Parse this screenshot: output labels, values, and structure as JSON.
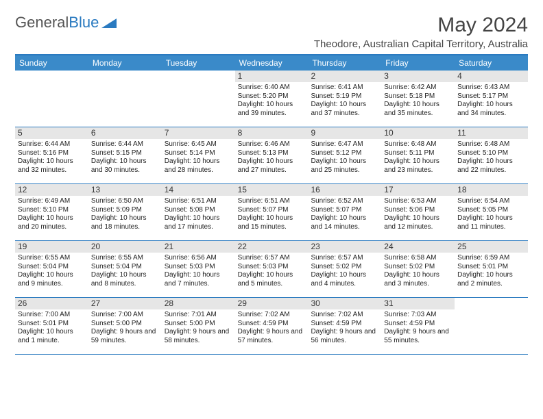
{
  "logo": {
    "text1": "General",
    "text2": "Blue"
  },
  "title": "May 2024",
  "subtitle": "Theodore, Australian Capital Territory, Australia",
  "colors": {
    "header_bg": "#3a8ac9",
    "border": "#2a7ac0",
    "daynum_bg": "#e6e6e6"
  },
  "day_names": [
    "Sunday",
    "Monday",
    "Tuesday",
    "Wednesday",
    "Thursday",
    "Friday",
    "Saturday"
  ],
  "weeks": [
    [
      {
        "n": "",
        "empty": true
      },
      {
        "n": "",
        "empty": true
      },
      {
        "n": "",
        "empty": true
      },
      {
        "n": "1",
        "sr": "6:40 AM",
        "ss": "5:20 PM",
        "dl": "10 hours and 39 minutes."
      },
      {
        "n": "2",
        "sr": "6:41 AM",
        "ss": "5:19 PM",
        "dl": "10 hours and 37 minutes."
      },
      {
        "n": "3",
        "sr": "6:42 AM",
        "ss": "5:18 PM",
        "dl": "10 hours and 35 minutes."
      },
      {
        "n": "4",
        "sr": "6:43 AM",
        "ss": "5:17 PM",
        "dl": "10 hours and 34 minutes."
      }
    ],
    [
      {
        "n": "5",
        "sr": "6:44 AM",
        "ss": "5:16 PM",
        "dl": "10 hours and 32 minutes."
      },
      {
        "n": "6",
        "sr": "6:44 AM",
        "ss": "5:15 PM",
        "dl": "10 hours and 30 minutes."
      },
      {
        "n": "7",
        "sr": "6:45 AM",
        "ss": "5:14 PM",
        "dl": "10 hours and 28 minutes."
      },
      {
        "n": "8",
        "sr": "6:46 AM",
        "ss": "5:13 PM",
        "dl": "10 hours and 27 minutes."
      },
      {
        "n": "9",
        "sr": "6:47 AM",
        "ss": "5:12 PM",
        "dl": "10 hours and 25 minutes."
      },
      {
        "n": "10",
        "sr": "6:48 AM",
        "ss": "5:11 PM",
        "dl": "10 hours and 23 minutes."
      },
      {
        "n": "11",
        "sr": "6:48 AM",
        "ss": "5:10 PM",
        "dl": "10 hours and 22 minutes."
      }
    ],
    [
      {
        "n": "12",
        "sr": "6:49 AM",
        "ss": "5:10 PM",
        "dl": "10 hours and 20 minutes."
      },
      {
        "n": "13",
        "sr": "6:50 AM",
        "ss": "5:09 PM",
        "dl": "10 hours and 18 minutes."
      },
      {
        "n": "14",
        "sr": "6:51 AM",
        "ss": "5:08 PM",
        "dl": "10 hours and 17 minutes."
      },
      {
        "n": "15",
        "sr": "6:51 AM",
        "ss": "5:07 PM",
        "dl": "10 hours and 15 minutes."
      },
      {
        "n": "16",
        "sr": "6:52 AM",
        "ss": "5:07 PM",
        "dl": "10 hours and 14 minutes."
      },
      {
        "n": "17",
        "sr": "6:53 AM",
        "ss": "5:06 PM",
        "dl": "10 hours and 12 minutes."
      },
      {
        "n": "18",
        "sr": "6:54 AM",
        "ss": "5:05 PM",
        "dl": "10 hours and 11 minutes."
      }
    ],
    [
      {
        "n": "19",
        "sr": "6:55 AM",
        "ss": "5:04 PM",
        "dl": "10 hours and 9 minutes."
      },
      {
        "n": "20",
        "sr": "6:55 AM",
        "ss": "5:04 PM",
        "dl": "10 hours and 8 minutes."
      },
      {
        "n": "21",
        "sr": "6:56 AM",
        "ss": "5:03 PM",
        "dl": "10 hours and 7 minutes."
      },
      {
        "n": "22",
        "sr": "6:57 AM",
        "ss": "5:03 PM",
        "dl": "10 hours and 5 minutes."
      },
      {
        "n": "23",
        "sr": "6:57 AM",
        "ss": "5:02 PM",
        "dl": "10 hours and 4 minutes."
      },
      {
        "n": "24",
        "sr": "6:58 AM",
        "ss": "5:02 PM",
        "dl": "10 hours and 3 minutes."
      },
      {
        "n": "25",
        "sr": "6:59 AM",
        "ss": "5:01 PM",
        "dl": "10 hours and 2 minutes."
      }
    ],
    [
      {
        "n": "26",
        "sr": "7:00 AM",
        "ss": "5:01 PM",
        "dl": "10 hours and 1 minute."
      },
      {
        "n": "27",
        "sr": "7:00 AM",
        "ss": "5:00 PM",
        "dl": "9 hours and 59 minutes."
      },
      {
        "n": "28",
        "sr": "7:01 AM",
        "ss": "5:00 PM",
        "dl": "9 hours and 58 minutes."
      },
      {
        "n": "29",
        "sr": "7:02 AM",
        "ss": "4:59 PM",
        "dl": "9 hours and 57 minutes."
      },
      {
        "n": "30",
        "sr": "7:02 AM",
        "ss": "4:59 PM",
        "dl": "9 hours and 56 minutes."
      },
      {
        "n": "31",
        "sr": "7:03 AM",
        "ss": "4:59 PM",
        "dl": "9 hours and 55 minutes."
      },
      {
        "n": "",
        "empty": true
      }
    ]
  ],
  "labels": {
    "sunrise": "Sunrise:",
    "sunset": "Sunset:",
    "daylight": "Daylight:"
  }
}
